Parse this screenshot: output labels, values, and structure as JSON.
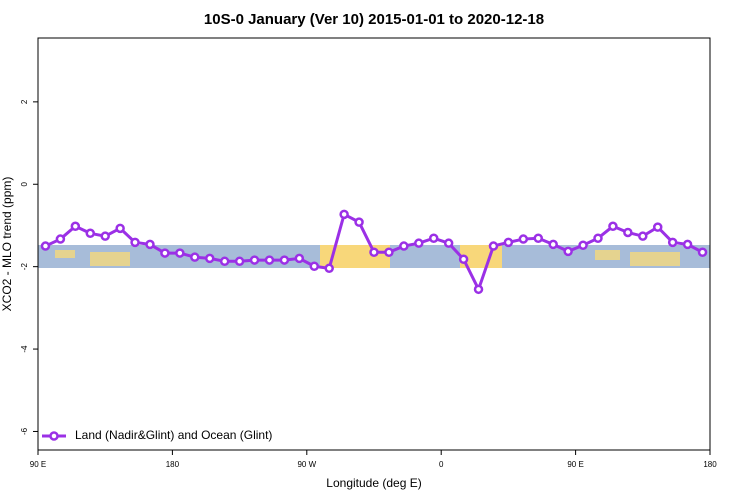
{
  "chart_data": {
    "type": "line",
    "title": "10S-0 January (Ver 10)   2015-01-01 to 2020-12-18",
    "xlabel": "Longitude (deg E)",
    "ylabel": "XCO2 - MLO trend (ppm)",
    "x": [
      95,
      105,
      115,
      125,
      135,
      145,
      155,
      165,
      175,
      185,
      195,
      205,
      215,
      225,
      235,
      245,
      255,
      265,
      275,
      285,
      295,
      305,
      315,
      325,
      335,
      345,
      355,
      365,
      375,
      385,
      395,
      405,
      415,
      425,
      435,
      445,
      455,
      465,
      475,
      485,
      495,
      505,
      515,
      525,
      535
    ],
    "series": [
      {
        "name": "Land (Nadir&Glint) and Ocean (Glint)",
        "color": "#9b30e6",
        "values": [
          -1.5,
          -1.33,
          -1.02,
          -1.19,
          -1.26,
          -1.07,
          -1.41,
          -1.46,
          -1.67,
          -1.67,
          -1.77,
          -1.8,
          -1.87,
          -1.87,
          -1.84,
          -1.84,
          -1.84,
          -1.8,
          -1.99,
          -2.04,
          -0.73,
          -0.92,
          -1.65,
          -1.65,
          -1.5,
          -1.43,
          -1.31,
          -1.43,
          -1.82,
          -2.55,
          -1.5,
          -1.41,
          -1.33,
          -1.31,
          -1.46,
          -1.63,
          -1.48,
          -1.31,
          -1.02,
          -1.17,
          -1.26,
          -1.04,
          -1.41,
          -1.46,
          -1.65
        ]
      }
    ],
    "xlim": [
      90,
      540
    ],
    "xticks": [
      {
        "value": 90,
        "label": "90 E"
      },
      180,
      {
        "value": 270,
        "label": "90 W"
      },
      {
        "value": 360,
        "label": "0"
      },
      {
        "value": 450,
        "label": "90 E"
      },
      {
        "value": 540,
        "label": "180"
      }
    ],
    "ylim": [
      -6.45,
      3.55
    ],
    "yticks": [
      -6,
      -4,
      -2,
      0,
      2
    ],
    "legend": "bottom-left"
  }
}
